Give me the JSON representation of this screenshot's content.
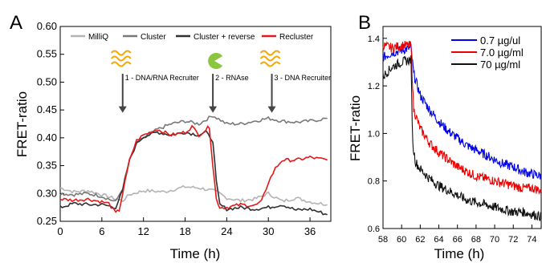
{
  "chart_data": [
    {
      "panel_label": "A",
      "type": "line",
      "xlabel": "Time (h)",
      "ylabel": "FRET-ratio",
      "xlim": [
        0,
        39
      ],
      "ylim": [
        0.25,
        0.6
      ],
      "xticks": [
        "0",
        "6",
        "12",
        "18",
        "24",
        "30",
        "36"
      ],
      "yticks": [
        "0.25",
        "0.30",
        "0.35",
        "0.40",
        "0.45",
        "0.50",
        "0.55",
        "0.60"
      ],
      "legend": "top",
      "series": [
        {
          "name": "MilliQ",
          "color": "#b4b4b4",
          "x": [
            0,
            2,
            4,
            6,
            8,
            9,
            10,
            12,
            15,
            18,
            20,
            22,
            23,
            24,
            26,
            28,
            30,
            32,
            34,
            36,
            38.5
          ],
          "y": [
            0.31,
            0.303,
            0.305,
            0.298,
            0.29,
            0.287,
            0.298,
            0.305,
            0.303,
            0.312,
            0.31,
            0.305,
            0.3,
            0.292,
            0.287,
            0.29,
            0.3,
            0.286,
            0.292,
            0.285,
            0.28
          ]
        },
        {
          "name": "Cluster",
          "color": "#787878",
          "x": [
            0,
            2,
            4,
            6,
            8,
            9,
            10,
            11,
            12,
            14,
            16,
            18,
            20,
            22,
            24,
            26,
            28,
            30,
            32,
            34,
            36,
            38.5
          ],
          "y": [
            0.3,
            0.298,
            0.3,
            0.295,
            0.285,
            0.31,
            0.36,
            0.39,
            0.4,
            0.415,
            0.425,
            0.43,
            0.425,
            0.44,
            0.425,
            0.425,
            0.43,
            0.435,
            0.43,
            0.428,
            0.43,
            0.435
          ]
        },
        {
          "name": "Cluster + reverse",
          "color": "#303030",
          "x": [
            0,
            2,
            4,
            6,
            8,
            9,
            10,
            11,
            12,
            14,
            16,
            18,
            20,
            21,
            22,
            22.5,
            23,
            24,
            26,
            28,
            30,
            32,
            34,
            36,
            38.5
          ],
          "y": [
            0.275,
            0.282,
            0.28,
            0.28,
            0.275,
            0.305,
            0.36,
            0.39,
            0.402,
            0.41,
            0.405,
            0.41,
            0.405,
            0.41,
            0.395,
            0.32,
            0.28,
            0.272,
            0.275,
            0.272,
            0.275,
            0.28,
            0.27,
            0.272,
            0.262
          ]
        },
        {
          "name": "Recluster",
          "color": "#e31a1c",
          "x": [
            0,
            2,
            4,
            6,
            7,
            8,
            8.5,
            9,
            10,
            11,
            12,
            14,
            16,
            18,
            19,
            20,
            21,
            21.5,
            22,
            22.5,
            23,
            24,
            26,
            28,
            29,
            30,
            31,
            32,
            34,
            36,
            38.5
          ],
          "y": [
            0.29,
            0.288,
            0.29,
            0.285,
            0.282,
            0.265,
            0.27,
            0.3,
            0.36,
            0.395,
            0.405,
            0.415,
            0.405,
            0.41,
            0.42,
            0.405,
            0.415,
            0.42,
            0.35,
            0.29,
            0.275,
            0.275,
            0.28,
            0.278,
            0.285,
            0.32,
            0.345,
            0.36,
            0.36,
            0.365,
            0.36
          ]
        }
      ],
      "annotations": [
        {
          "label": "1 - DNA/RNA Recruiter",
          "x": 9,
          "y_tail": 0.515,
          "y_head": 0.445,
          "icon": "squiggle-dna-icon"
        },
        {
          "label": "2 - RNAse",
          "x": 22,
          "y_tail": 0.515,
          "y_head": 0.445,
          "icon": "pacman-rnase-icon"
        },
        {
          "label": "3 - DNA Recruiter",
          "x": 30.5,
          "y_tail": 0.515,
          "y_head": 0.445,
          "icon": "squiggle-dna-icon"
        }
      ]
    },
    {
      "panel_label": "B",
      "type": "line",
      "xlabel": "Time (h)",
      "ylabel": "FRET-ratio",
      "xlim": [
        58,
        75
      ],
      "ylim": [
        0.6,
        1.45
      ],
      "xticks": [
        "58",
        "60",
        "62",
        "64",
        "66",
        "68",
        "70",
        "72",
        "74"
      ],
      "yticks": [
        "0.6",
        "0.8",
        "1.0",
        "1.2",
        "1.4"
      ],
      "legend": "top-right",
      "series": [
        {
          "name": "0.7 µg/ul",
          "color": "#0000ee",
          "x": [
            58,
            59,
            60,
            61,
            61.3,
            62,
            63,
            64,
            65,
            66,
            67,
            68,
            69,
            70,
            71,
            72,
            73,
            74,
            75
          ],
          "y": [
            1.32,
            1.34,
            1.35,
            1.36,
            1.25,
            1.16,
            1.1,
            1.05,
            1.01,
            0.98,
            0.95,
            0.93,
            0.91,
            0.89,
            0.87,
            0.86,
            0.84,
            0.83,
            0.82
          ]
        },
        {
          "name": "7.0 µg/ml",
          "color": "#ee0000",
          "x": [
            58,
            59,
            60,
            61,
            61.3,
            62,
            63,
            64,
            65,
            66,
            67,
            68,
            69,
            70,
            71,
            72,
            73,
            74,
            75
          ],
          "y": [
            1.37,
            1.36,
            1.37,
            1.37,
            1.1,
            1.02,
            0.96,
            0.92,
            0.89,
            0.86,
            0.84,
            0.82,
            0.81,
            0.8,
            0.79,
            0.78,
            0.77,
            0.77,
            0.76
          ]
        },
        {
          "name": "70 µg/ml",
          "color": "#111111",
          "x": [
            58,
            59,
            60,
            61,
            61.2,
            61.5,
            62,
            63,
            64,
            65,
            66,
            67,
            68,
            69,
            70,
            71,
            72,
            73,
            74,
            75
          ],
          "y": [
            1.24,
            1.28,
            1.3,
            1.31,
            0.95,
            0.88,
            0.85,
            0.81,
            0.78,
            0.76,
            0.74,
            0.72,
            0.71,
            0.7,
            0.69,
            0.68,
            0.67,
            0.67,
            0.66,
            0.65
          ]
        }
      ]
    }
  ]
}
